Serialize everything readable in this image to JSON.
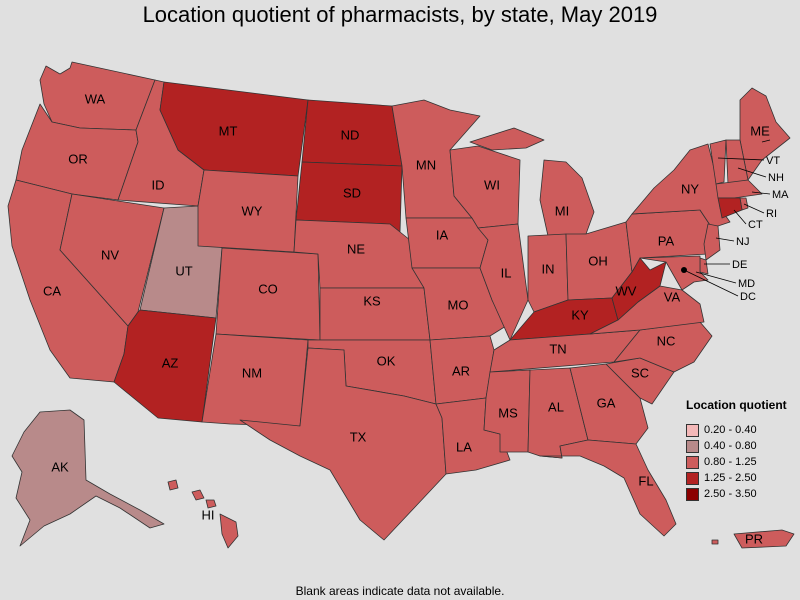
{
  "title": "Location quotient of pharmacists, by state, May 2019",
  "footnote": "Blank areas indicate data not available.",
  "legend": {
    "title": "Location quotient",
    "items": [
      {
        "label": "0.20 - 0.40",
        "color": "#f4b8b8"
      },
      {
        "label": "0.40 - 0.80",
        "color": "#b88a8a"
      },
      {
        "label": "0.80 - 1.25",
        "color": "#cd5c5c"
      },
      {
        "label": "1.25 - 2.50",
        "color": "#b22222"
      },
      {
        "label": "2.50 - 3.50",
        "color": "#8b0000"
      }
    ]
  },
  "states": {
    "WA": "WA",
    "OR": "OR",
    "CA": "CA",
    "ID": "ID",
    "NV": "NV",
    "UT": "UT",
    "AZ": "AZ",
    "MT": "MT",
    "WY": "WY",
    "CO": "CO",
    "NM": "NM",
    "ND": "ND",
    "SD": "SD",
    "NE": "NE",
    "KS": "KS",
    "OK": "OK",
    "TX": "TX",
    "MN": "MN",
    "IA": "IA",
    "MO": "MO",
    "AR": "AR",
    "LA": "LA",
    "WI": "WI",
    "IL": "IL",
    "MI": "MI",
    "IN": "IN",
    "OH": "OH",
    "KY": "KY",
    "TN": "TN",
    "MS": "MS",
    "AL": "AL",
    "GA": "GA",
    "FL": "FL",
    "SC": "SC",
    "NC": "NC",
    "VA": "VA",
    "WV": "WV",
    "PA": "PA",
    "NY": "NY",
    "ME": "ME",
    "VT": "VT",
    "NH": "NH",
    "MA": "MA",
    "RI": "RI",
    "CT": "CT",
    "NJ": "NJ",
    "DE": "DE",
    "MD": "MD",
    "DC": "DC",
    "AK": "AK",
    "HI": "HI",
    "PR": "PR"
  },
  "categories": {
    "UT": "0.40 - 0.80",
    "AK": "0.40 - 0.80",
    "MT": "1.25 - 2.50",
    "ND": "1.25 - 2.50",
    "SD": "1.25 - 2.50",
    "AZ": "1.25 - 2.50",
    "KY": "1.25 - 2.50",
    "WV": "1.25 - 2.50",
    "default": "0.80 - 1.25"
  }
}
